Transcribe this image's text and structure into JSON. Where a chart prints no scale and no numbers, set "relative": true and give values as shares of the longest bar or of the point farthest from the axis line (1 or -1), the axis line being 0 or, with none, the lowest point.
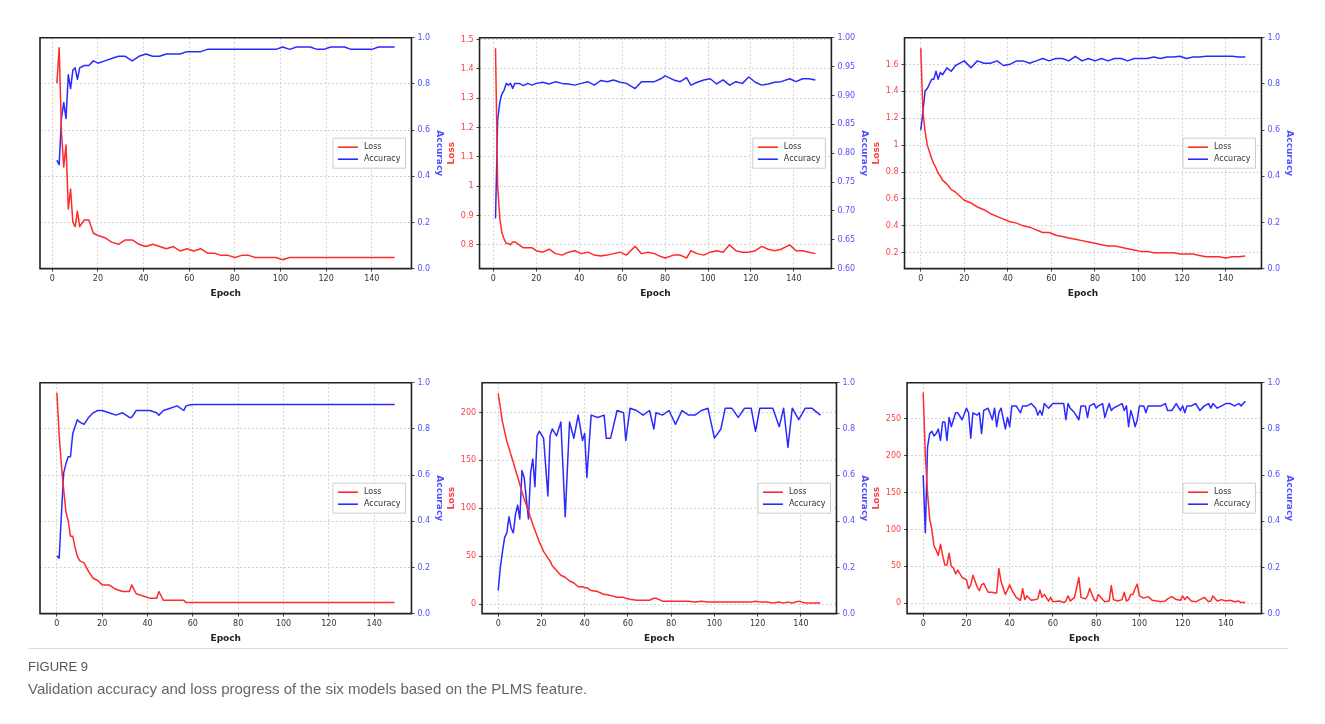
{
  "chart_data": [
    {
      "type": "line",
      "relative": true,
      "xlabel": "Epoch",
      "y2label": "Accuracy",
      "grid": true,
      "legend": "right",
      "xlim": [
        -5.4,
        157.4
      ],
      "xticks": [
        0,
        20,
        40,
        60,
        80,
        100,
        120,
        140
      ],
      "y2lim": [
        0,
        1
      ],
      "y2ticks": [
        {
          "value": 0,
          "label": "0.0"
        },
        {
          "value": 0.2,
          "label": "0.2"
        },
        {
          "value": 0.4,
          "label": "0.4"
        },
        {
          "value": 0.6,
          "label": "0.6"
        },
        {
          "value": 0.8,
          "label": "0.8"
        },
        {
          "value": 1,
          "label": "1.0"
        }
      ],
      "x": [
        2,
        3,
        4,
        5,
        6,
        7,
        8,
        9,
        10,
        11,
        12,
        14,
        16,
        18,
        20,
        23,
        26,
        29,
        32,
        35,
        38,
        41,
        44,
        47,
        50,
        53,
        56,
        59,
        62,
        65,
        68,
        71,
        74,
        77,
        80,
        83,
        86,
        89,
        92,
        95,
        98,
        101,
        104,
        107,
        110,
        113,
        116,
        119,
        122,
        125,
        128,
        131,
        134,
        137,
        140,
        143,
        146,
        150
      ],
      "series": [
        {
          "name": "Loss",
          "color": "#ff2a2a",
          "values": [
            0.84,
            1,
            0.62,
            0.46,
            0.56,
            0.27,
            0.36,
            0.21,
            0.19,
            0.26,
            0.19,
            0.22,
            0.22,
            0.16,
            0.15,
            0.14,
            0.12,
            0.11,
            0.13,
            0.13,
            0.11,
            0.1,
            0.11,
            0.1,
            0.09,
            0.1,
            0.08,
            0.09,
            0.08,
            0.09,
            0.07,
            0.07,
            0.06,
            0.06,
            0.05,
            0.06,
            0.06,
            0.05,
            0.05,
            0.05,
            0.05,
            0.04,
            0.05,
            0.05,
            0.05,
            0.05,
            0.05,
            0.05,
            0.05,
            0.05,
            0.05,
            0.05,
            0.05,
            0.05,
            0.05,
            0.05,
            0.05,
            0.05
          ]
        },
        {
          "name": "Accuracy",
          "color": "#2a2aff",
          "axis": "y2",
          "values": [
            0.47,
            0.45,
            0.65,
            0.72,
            0.65,
            0.84,
            0.78,
            0.86,
            0.87,
            0.82,
            0.87,
            0.88,
            0.88,
            0.9,
            0.89,
            0.9,
            0.91,
            0.92,
            0.92,
            0.9,
            0.92,
            0.93,
            0.92,
            0.92,
            0.93,
            0.93,
            0.93,
            0.94,
            0.94,
            0.94,
            0.95,
            0.95,
            0.95,
            0.95,
            0.95,
            0.95,
            0.95,
            0.95,
            0.95,
            0.95,
            0.95,
            0.96,
            0.95,
            0.96,
            0.96,
            0.96,
            0.95,
            0.95,
            0.96,
            0.96,
            0.96,
            0.95,
            0.95,
            0.95,
            0.95,
            0.96,
            0.96,
            0.96
          ]
        }
      ]
    },
    {
      "type": "line",
      "xlabel": "Epoch",
      "ylabel": "Loss",
      "y2label": "Accuracy",
      "grid": true,
      "legend": "right",
      "xlim": [
        -6.45,
        157.45
      ],
      "xticks": [
        0,
        20,
        40,
        60,
        80,
        100,
        120,
        140
      ],
      "ylim": [
        0.719,
        1.506
      ],
      "yticks": [
        0.8,
        0.9,
        1.0,
        1.1,
        1.2,
        1.3,
        1.4,
        1.5
      ],
      "y2lim": [
        0.6,
        1
      ],
      "y2ticks": [
        {
          "value": 0.6,
          "label": "0.60"
        },
        {
          "value": 0.65,
          "label": "0.65"
        },
        {
          "value": 0.7,
          "label": "0.70"
        },
        {
          "value": 0.75,
          "label": "0.75"
        },
        {
          "value": 0.8,
          "label": "0.80"
        },
        {
          "value": 0.85,
          "label": "0.85"
        },
        {
          "value": 0.9,
          "label": "0.90"
        },
        {
          "value": 0.95,
          "label": "0.95"
        },
        {
          "value": 1,
          "label": "1.00"
        }
      ],
      "x": [
        1,
        2,
        3,
        4,
        5,
        6,
        7,
        8,
        9,
        10,
        12,
        14,
        16,
        18,
        20,
        23,
        26,
        29,
        32,
        35,
        38,
        41,
        44,
        47,
        50,
        53,
        56,
        59,
        62,
        66,
        69,
        72,
        75,
        78,
        80,
        84,
        87,
        90,
        92,
        95,
        98,
        101,
        104,
        107,
        110,
        113,
        116,
        119,
        122,
        125,
        128,
        131,
        134,
        138,
        141,
        144,
        147,
        150
      ],
      "series": [
        {
          "name": "Loss",
          "color": "#ff2a2a",
          "values": [
            1.47,
            1.0,
            0.89,
            0.84,
            0.82,
            0.805,
            0.805,
            0.8,
            0.81,
            0.81,
            0.8,
            0.79,
            0.79,
            0.79,
            0.78,
            0.775,
            0.785,
            0.77,
            0.765,
            0.775,
            0.78,
            0.77,
            0.775,
            0.765,
            0.762,
            0.765,
            0.77,
            0.775,
            0.765,
            0.795,
            0.77,
            0.775,
            0.77,
            0.76,
            0.755,
            0.765,
            0.765,
            0.755,
            0.78,
            0.77,
            0.765,
            0.775,
            0.78,
            0.775,
            0.8,
            0.78,
            0.775,
            0.775,
            0.78,
            0.795,
            0.785,
            0.78,
            0.785,
            0.8,
            0.78,
            0.78,
            0.775,
            0.77
          ]
        },
        {
          "name": "Accuracy",
          "color": "#2a2aff",
          "axis": "y2",
          "values": [
            0.687,
            0.858,
            0.888,
            0.903,
            0.909,
            0.921,
            0.918,
            0.921,
            0.912,
            0.921,
            0.921,
            0.917,
            0.921,
            0.918,
            0.921,
            0.923,
            0.92,
            0.924,
            0.921,
            0.92,
            0.918,
            0.921,
            0.924,
            0.918,
            0.926,
            0.924,
            0.927,
            0.923,
            0.921,
            0.912,
            0.924,
            0.924,
            0.924,
            0.929,
            0.934,
            0.927,
            0.924,
            0.931,
            0.918,
            0.923,
            0.927,
            0.929,
            0.92,
            0.927,
            0.918,
            0.924,
            0.921,
            0.932,
            0.923,
            0.918,
            0.92,
            0.923,
            0.924,
            0.929,
            0.924,
            0.929,
            0.929,
            0.927
          ]
        }
      ]
    },
    {
      "type": "line",
      "xlabel": "Epoch",
      "ylabel": "Loss",
      "y2label": "Accuracy",
      "grid": true,
      "legend": "right",
      "xlim": [
        -7.45,
        156.45
      ],
      "xticks": [
        0,
        20,
        40,
        60,
        80,
        100,
        120,
        140
      ],
      "ylim": [
        0.082,
        1.798
      ],
      "yticks": [
        0.2,
        0.4,
        0.6,
        0.8,
        1.0,
        1.2,
        1.4,
        1.6
      ],
      "y2lim": [
        0,
        1
      ],
      "y2ticks": [
        {
          "value": 0,
          "label": "0.0"
        },
        {
          "value": 0.2,
          "label": "0.2"
        },
        {
          "value": 0.4,
          "label": "0.4"
        },
        {
          "value": 0.6,
          "label": "0.6"
        },
        {
          "value": 0.8,
          "label": "0.8"
        },
        {
          "value": 1,
          "label": "1.0"
        }
      ],
      "x": [
        0,
        1,
        2,
        3,
        4,
        5,
        6,
        7,
        8,
        9,
        10,
        12,
        14,
        16,
        18,
        20,
        23,
        26,
        29,
        32,
        35,
        38,
        41,
        44,
        47,
        50,
        53,
        56,
        59,
        62,
        65,
        68,
        71,
        74,
        77,
        80,
        83,
        86,
        89,
        92,
        95,
        98,
        101,
        104,
        107,
        110,
        113,
        116,
        119,
        122,
        125,
        128,
        131,
        134,
        137,
        140,
        143,
        146,
        149
      ],
      "series": [
        {
          "name": "Loss",
          "color": "#ff2a2a",
          "values": [
            1.72,
            1.25,
            1.1,
            1.0,
            0.95,
            0.9,
            0.86,
            0.83,
            0.79,
            0.77,
            0.74,
            0.71,
            0.67,
            0.65,
            0.62,
            0.59,
            0.57,
            0.54,
            0.52,
            0.49,
            0.47,
            0.45,
            0.43,
            0.42,
            0.4,
            0.39,
            0.37,
            0.35,
            0.35,
            0.33,
            0.32,
            0.31,
            0.3,
            0.29,
            0.28,
            0.27,
            0.26,
            0.25,
            0.25,
            0.24,
            0.23,
            0.22,
            0.21,
            0.21,
            0.2,
            0.2,
            0.2,
            0.2,
            0.19,
            0.19,
            0.19,
            0.18,
            0.17,
            0.17,
            0.17,
            0.16,
            0.17,
            0.17,
            0.175
          ]
        },
        {
          "name": "Accuracy",
          "color": "#2a2aff",
          "axis": "y2",
          "values": [
            0.6,
            0.68,
            0.77,
            0.78,
            0.8,
            0.82,
            0.82,
            0.855,
            0.82,
            0.85,
            0.84,
            0.87,
            0.855,
            0.88,
            0.89,
            0.9,
            0.87,
            0.9,
            0.89,
            0.89,
            0.9,
            0.88,
            0.885,
            0.9,
            0.9,
            0.89,
            0.9,
            0.91,
            0.9,
            0.91,
            0.91,
            0.9,
            0.92,
            0.9,
            0.91,
            0.9,
            0.91,
            0.9,
            0.91,
            0.91,
            0.9,
            0.91,
            0.91,
            0.91,
            0.917,
            0.91,
            0.917,
            0.917,
            0.92,
            0.91,
            0.917,
            0.917,
            0.92,
            0.92,
            0.92,
            0.92,
            0.92,
            0.917,
            0.917
          ]
        }
      ]
    },
    {
      "type": "line",
      "relative": true,
      "xlabel": "Epoch",
      "y2label": "Accuracy",
      "grid": true,
      "legend": "right",
      "xlim": [
        -7.45,
        156.45
      ],
      "xticks": [
        0,
        20,
        40,
        60,
        80,
        100,
        120,
        140
      ],
      "y2lim": [
        0,
        1
      ],
      "y2ticks": [
        {
          "value": 0,
          "label": "0.0"
        },
        {
          "value": 0.2,
          "label": "0.2"
        },
        {
          "value": 0.4,
          "label": "0.4"
        },
        {
          "value": 0.6,
          "label": "0.6"
        },
        {
          "value": 0.8,
          "label": "0.8"
        },
        {
          "value": 1,
          "label": "1.0"
        }
      ],
      "x": [
        0,
        1,
        2,
        3,
        4,
        5,
        6,
        7,
        8,
        9,
        10,
        12,
        14,
        16,
        18,
        20,
        23,
        26,
        29,
        32,
        33,
        35,
        38,
        41,
        44,
        45,
        47,
        50,
        53,
        56,
        57,
        59,
        62,
        65,
        68,
        71,
        74,
        77,
        80,
        83,
        86,
        89,
        92,
        95,
        98,
        101,
        104,
        107,
        110,
        113,
        116,
        119,
        122,
        125,
        128,
        131,
        134,
        137,
        140,
        143,
        146,
        149
      ],
      "series": [
        {
          "name": "Loss",
          "color": "#ff2a2a",
          "values": [
            1,
            0.81,
            0.67,
            0.56,
            0.46,
            0.42,
            0.35,
            0.35,
            0.3,
            0.26,
            0.24,
            0.23,
            0.19,
            0.16,
            0.15,
            0.13,
            0.13,
            0.11,
            0.1,
            0.1,
            0.13,
            0.09,
            0.08,
            0.07,
            0.07,
            0.1,
            0.06,
            0.06,
            0.06,
            0.06,
            0.05,
            0.05,
            0.05,
            0.05,
            0.05,
            0.05,
            0.05,
            0.05,
            0.05,
            0.05,
            0.05,
            0.05,
            0.05,
            0.05,
            0.05,
            0.05,
            0.05,
            0.05,
            0.05,
            0.05,
            0.05,
            0.05,
            0.05,
            0.05,
            0.05,
            0.05,
            0.05,
            0.05,
            0.05,
            0.05,
            0.05,
            0.05
          ]
        },
        {
          "name": "Accuracy",
          "color": "#2a2aff",
          "axis": "y2",
          "values": [
            0.25,
            0.24,
            0.43,
            0.61,
            0.65,
            0.68,
            0.68,
            0.78,
            0.81,
            0.84,
            0.83,
            0.82,
            0.85,
            0.87,
            0.88,
            0.88,
            0.87,
            0.86,
            0.87,
            0.85,
            0.85,
            0.88,
            0.88,
            0.88,
            0.87,
            0.86,
            0.88,
            0.89,
            0.9,
            0.88,
            0.9,
            0.905,
            0.906,
            0.906,
            0.906,
            0.906,
            0.906,
            0.906,
            0.906,
            0.906,
            0.906,
            0.906,
            0.906,
            0.906,
            0.906,
            0.906,
            0.906,
            0.906,
            0.906,
            0.906,
            0.906,
            0.906,
            0.906,
            0.906,
            0.906,
            0.906,
            0.906,
            0.906,
            0.906,
            0.906,
            0.906,
            0.906
          ]
        }
      ]
    },
    {
      "type": "line",
      "xlabel": "Epoch",
      "ylabel": "Loss",
      "y2label": "Accuracy",
      "grid": true,
      "legend": "right",
      "xlim": [
        -7.45,
        156.45
      ],
      "xticks": [
        0,
        20,
        40,
        60,
        80,
        100,
        120,
        140
      ],
      "ylim": [
        -10,
        231
      ],
      "yticks": [
        0,
        50,
        100,
        150,
        200
      ],
      "y2lim": [
        0,
        1
      ],
      "y2ticks": [
        {
          "value": 0,
          "label": "0.0"
        },
        {
          "value": 0.2,
          "label": "0.2"
        },
        {
          "value": 0.4,
          "label": "0.4"
        },
        {
          "value": 0.6,
          "label": "0.6"
        },
        {
          "value": 0.8,
          "label": "0.8"
        },
        {
          "value": 1,
          "label": "1.0"
        }
      ],
      "x": [
        0,
        1,
        2,
        3,
        4,
        5,
        6,
        7,
        8,
        9,
        10,
        11,
        12,
        14,
        15,
        16,
        17,
        18,
        19,
        21,
        23,
        24,
        25,
        27,
        29,
        31,
        33,
        35,
        37,
        39,
        40,
        41,
        43,
        46,
        49,
        50,
        52,
        55,
        58,
        59,
        61,
        64,
        67,
        70,
        72,
        73,
        76,
        79,
        82,
        85,
        88,
        91,
        94,
        97,
        100,
        103,
        105,
        108,
        111,
        114,
        117,
        119,
        121,
        124,
        127,
        130,
        132,
        134,
        136,
        139,
        142,
        145,
        149
      ],
      "series": [
        {
          "name": "Loss",
          "color": "#ff2a2a",
          "values": [
            220,
            205,
            190,
            180,
            170,
            163,
            155,
            148,
            140,
            133,
            125,
            117,
            110,
            97,
            90,
            83,
            77,
            71,
            65,
            55,
            48,
            45,
            40,
            35,
            30,
            28,
            24,
            22,
            18,
            18,
            17,
            17,
            14,
            13,
            10,
            10,
            9,
            7,
            7,
            6,
            5,
            4,
            4,
            4,
            6,
            6,
            3,
            3,
            3,
            3,
            3,
            2,
            3,
            2,
            2,
            2,
            2,
            2,
            2,
            2,
            2,
            3,
            2,
            2,
            1,
            2,
            1,
            2,
            1,
            3,
            1,
            1,
            1
          ]
        },
        {
          "name": "Accuracy",
          "color": "#2a2aff",
          "axis": "y2",
          "values": [
            0.1,
            0.2,
            0.27,
            0.33,
            0.35,
            0.42,
            0.37,
            0.35,
            0.43,
            0.47,
            0.41,
            0.62,
            0.59,
            0.41,
            0.61,
            0.67,
            0.55,
            0.77,
            0.79,
            0.76,
            0.51,
            0.77,
            0.8,
            0.77,
            0.83,
            0.42,
            0.83,
            0.76,
            0.86,
            0.75,
            0.78,
            0.59,
            0.86,
            0.85,
            0.86,
            0.76,
            0.76,
            0.88,
            0.87,
            0.75,
            0.89,
            0.88,
            0.86,
            0.88,
            0.8,
            0.87,
            0.86,
            0.88,
            0.82,
            0.88,
            0.86,
            0.86,
            0.88,
            0.89,
            0.76,
            0.8,
            0.89,
            0.89,
            0.85,
            0.89,
            0.89,
            0.79,
            0.89,
            0.89,
            0.89,
            0.81,
            0.89,
            0.72,
            0.89,
            0.84,
            0.89,
            0.89,
            0.86
          ]
        }
      ]
    },
    {
      "type": "line",
      "xlabel": "Epoch",
      "ylabel": "Loss",
      "y2label": "Accuracy",
      "grid": true,
      "legend": "right",
      "xlim": [
        -7.45,
        156.45
      ],
      "xticks": [
        0,
        20,
        40,
        60,
        80,
        100,
        120,
        140
      ],
      "ylim": [
        -14,
        299
      ],
      "yticks": [
        0,
        50,
        100,
        150,
        200,
        250
      ],
      "y2lim": [
        0,
        1
      ],
      "y2ticks": [
        {
          "value": 0,
          "label": "0.0"
        },
        {
          "value": 0.2,
          "label": "0.2"
        },
        {
          "value": 0.4,
          "label": "0.4"
        },
        {
          "value": 0.6,
          "label": "0.6"
        },
        {
          "value": 0.8,
          "label": "0.8"
        },
        {
          "value": 1,
          "label": "1.0"
        }
      ],
      "x": [
        0,
        1,
        2,
        3,
        4,
        5,
        6,
        7,
        8,
        9,
        10,
        11,
        12,
        13,
        14,
        15,
        16,
        18,
        20,
        21,
        22,
        23,
        25,
        26,
        27,
        28,
        30,
        32,
        33,
        34,
        35,
        36,
        38,
        39,
        40,
        41,
        43,
        45,
        46,
        47,
        48,
        50,
        52,
        53,
        54,
        55,
        56,
        58,
        59,
        60,
        63,
        65,
        66,
        67,
        68,
        70,
        72,
        73,
        75,
        76,
        77,
        79,
        80,
        81,
        83,
        84,
        86,
        87,
        88,
        90,
        92,
        93,
        94,
        95,
        96,
        97,
        98,
        99,
        100,
        102,
        103,
        104,
        106,
        108,
        110,
        112,
        113,
        115,
        117,
        119,
        120,
        121,
        122,
        124,
        126,
        128,
        130,
        132,
        133,
        134,
        136,
        138,
        140,
        142,
        144,
        146,
        147,
        149
      ],
      "series": [
        {
          "name": "Loss",
          "color": "#ff2a2a",
          "values": [
            286,
            200,
            150,
            115,
            100,
            78,
            72,
            65,
            80,
            65,
            52,
            52,
            68,
            50,
            48,
            40,
            45,
            35,
            32,
            20,
            25,
            38,
            22,
            17,
            25,
            27,
            15,
            15,
            14,
            14,
            47,
            30,
            12,
            18,
            25,
            18,
            8,
            4,
            20,
            5,
            10,
            4,
            5,
            6,
            18,
            8,
            12,
            3,
            8,
            2,
            3,
            1,
            3,
            10,
            3,
            8,
            35,
            8,
            6,
            10,
            20,
            5,
            3,
            12,
            5,
            2,
            3,
            24,
            5,
            3,
            5,
            15,
            3,
            5,
            12,
            12,
            20,
            26,
            10,
            7,
            8,
            9,
            4,
            3,
            2,
            3,
            6,
            9,
            5,
            4,
            10,
            5,
            9,
            3,
            2,
            5,
            8,
            2,
            3,
            10,
            3,
            5,
            3,
            4,
            2,
            3,
            1,
            1
          ]
        },
        {
          "name": "Accuracy",
          "color": "#2a2aff",
          "axis": "y2",
          "values": [
            0.6,
            0.35,
            0.72,
            0.78,
            0.79,
            0.77,
            0.78,
            0.8,
            0.75,
            0.83,
            0.83,
            0.75,
            0.85,
            0.81,
            0.84,
            0.87,
            0.87,
            0.84,
            0.89,
            0.87,
            0.76,
            0.87,
            0.86,
            0.87,
            0.78,
            0.88,
            0.89,
            0.84,
            0.89,
            0.81,
            0.87,
            0.89,
            0.8,
            0.85,
            0.81,
            0.9,
            0.9,
            0.87,
            0.9,
            0.9,
            0.9,
            0.91,
            0.89,
            0.86,
            0.88,
            0.86,
            0.91,
            0.89,
            0.9,
            0.91,
            0.91,
            0.91,
            0.84,
            0.91,
            0.89,
            0.87,
            0.84,
            0.9,
            0.9,
            0.85,
            0.9,
            0.91,
            0.89,
            0.9,
            0.91,
            0.85,
            0.91,
            0.88,
            0.89,
            0.9,
            0.91,
            0.88,
            0.9,
            0.81,
            0.88,
            0.85,
            0.81,
            0.84,
            0.9,
            0.9,
            0.87,
            0.9,
            0.9,
            0.9,
            0.9,
            0.91,
            0.88,
            0.88,
            0.91,
            0.88,
            0.9,
            0.87,
            0.9,
            0.9,
            0.91,
            0.88,
            0.9,
            0.91,
            0.89,
            0.91,
            0.89,
            0.9,
            0.91,
            0.91,
            0.9,
            0.91,
            0.9,
            0.92
          ]
        }
      ]
    },
    {
      "type": "other",
      "title": "FIGURE 9",
      "subtitle": "Validation accuracy and loss progress of the six models based on the PLMS feature."
    }
  ]
}
